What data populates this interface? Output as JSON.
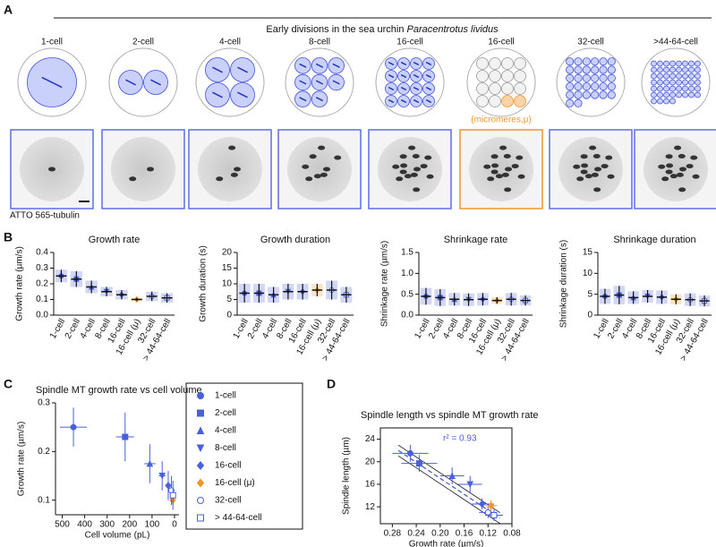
{
  "panel_labels": [
    "A",
    "B",
    "C",
    "D"
  ],
  "panel_a": {
    "header": "Early divisions in the sea urchin",
    "header_species": "Paracentrotus lividus",
    "stages": [
      "1-cell",
      "2-cell",
      "4-cell",
      "8-cell",
      "16-cell",
      "16-cell",
      "32-cell",
      ">44-64-cell"
    ],
    "annotation": "(micromeres,μ)",
    "stain_label": "ATTO 565-tubulin"
  },
  "chart_data": [
    {
      "type": "dot",
      "title": "Growth rate",
      "y_label": "Growth rate (µm/s)",
      "categories": [
        "1-cell",
        "2-cell",
        "4-cell",
        "8-cell",
        "16-cell",
        "16-cell (μ)",
        "32-cell",
        "> 44-64-cell"
      ],
      "values": [
        0.25,
        0.23,
        0.18,
        0.15,
        0.13,
        0.1,
        0.12,
        0.11
      ],
      "errors": [
        0.04,
        0.05,
        0.04,
        0.03,
        0.03,
        0.01,
        0.03,
        0.03
      ],
      "colors": [
        "#4a5fe0",
        "#4a5fe0",
        "#4a5fe0",
        "#4a5fe0",
        "#4a5fe0",
        "#f0962d",
        "#4a5fe0",
        "#4a5fe0"
      ],
      "markers": [
        "circle",
        "square",
        "triangle",
        "triangle-down",
        "diamond",
        "diamond",
        "circle-open",
        "square-open"
      ],
      "ylim": [
        0,
        0.4
      ],
      "yticks": [
        {
          "value": 0,
          "label": "0.0"
        },
        0.1,
        0.2,
        0.3,
        0.4
      ]
    },
    {
      "type": "dot",
      "title": "Growth duration",
      "y_label": "Growth duration (s)",
      "categories": [
        "1-cell",
        "2-cell",
        "4-cell",
        "8-cell",
        "16-cell",
        "16-cell (μ)",
        "32-cell",
        "> 44-64-cell"
      ],
      "values": [
        7,
        7,
        6.5,
        7.5,
        7.5,
        8,
        8,
        6.5
      ],
      "errors": [
        3,
        3,
        2.5,
        2.5,
        2.5,
        2,
        3,
        2.5
      ],
      "colors": [
        "#4a5fe0",
        "#4a5fe0",
        "#4a5fe0",
        "#4a5fe0",
        "#4a5fe0",
        "#f0962d",
        "#4a5fe0",
        "#4a5fe0"
      ],
      "markers": [
        "circle",
        "square",
        "triangle",
        "triangle-down",
        "diamond",
        "diamond",
        "circle-open",
        "square-open"
      ],
      "ylim": [
        0,
        20
      ],
      "yticks": [
        0,
        5,
        10,
        15,
        20
      ]
    },
    {
      "type": "dot",
      "title": "Shrinkage rate",
      "y_label": "Shrinkage rate (µm/s)",
      "categories": [
        "1-cell",
        "2-cell",
        "4-cell",
        "8-cell",
        "16-cell",
        "16-cell (μ)",
        "32-cell",
        "> 44-64-cell"
      ],
      "values": [
        0.45,
        0.42,
        0.38,
        0.37,
        0.38,
        0.35,
        0.38,
        0.35
      ],
      "errors": [
        0.2,
        0.2,
        0.15,
        0.15,
        0.15,
        0.08,
        0.15,
        0.12
      ],
      "colors": [
        "#4a5fe0",
        "#4a5fe0",
        "#4a5fe0",
        "#4a5fe0",
        "#4a5fe0",
        "#f0962d",
        "#4a5fe0",
        "#4a5fe0"
      ],
      "markers": [
        "circle",
        "square",
        "triangle",
        "triangle-down",
        "diamond",
        "diamond",
        "circle-open",
        "square-open"
      ],
      "ylim": [
        0,
        1.5
      ],
      "yticks": [
        {
          "value": 0,
          "label": "0.0"
        },
        0.5,
        {
          "value": 1,
          "label": "1.0"
        },
        1.5
      ]
    },
    {
      "type": "dot",
      "title": "Shrinkage duration",
      "y_label": "Shrinkage duration (s)",
      "categories": [
        "1-cell",
        "2-cell",
        "4-cell",
        "8-cell",
        "16-cell",
        "16-cell (μ)",
        "32-cell",
        "> 44-64-cell"
      ],
      "values": [
        4.5,
        4.8,
        4.2,
        4.5,
        4.3,
        3.8,
        3.7,
        3.4
      ],
      "errors": [
        1.8,
        2.2,
        1.5,
        1.5,
        1.6,
        1.2,
        1.5,
        1.3
      ],
      "colors": [
        "#4a5fe0",
        "#4a5fe0",
        "#4a5fe0",
        "#4a5fe0",
        "#4a5fe0",
        "#f0962d",
        "#4a5fe0",
        "#4a5fe0"
      ],
      "markers": [
        "circle",
        "square",
        "triangle",
        "triangle-down",
        "diamond",
        "diamond",
        "circle-open",
        "square-open"
      ],
      "ylim": [
        0,
        15
      ],
      "yticks": [
        0,
        5,
        10,
        15
      ]
    },
    {
      "type": "scatter",
      "title": "Spindle MT growth rate vs cell volume",
      "x_label": "Cell volume (pL)",
      "y_label": "Growth rate (µm/s)",
      "categories": [
        "1-cell",
        "2-cell",
        "4-cell",
        "8-cell",
        "16-cell",
        "16-cell (μ)",
        "32-cell",
        "> 44-64-cell"
      ],
      "x": [
        450,
        220,
        110,
        55,
        28,
        8,
        14,
        7
      ],
      "values": [
        0.25,
        0.23,
        0.175,
        0.15,
        0.13,
        0.1,
        0.12,
        0.11
      ],
      "x_err": [
        60,
        40,
        25,
        15,
        10,
        3,
        5,
        3
      ],
      "y_err": [
        0.04,
        0.05,
        0.04,
        0.03,
        0.03,
        0.01,
        0.03,
        0.03
      ],
      "colors": [
        "#4a5fe0",
        "#4a5fe0",
        "#4a5fe0",
        "#4a5fe0",
        "#4a5fe0",
        "#f0962d",
        "#4a5fe0",
        "#4a5fe0"
      ],
      "markers": [
        "circle",
        "square",
        "triangle",
        "triangle-down",
        "diamond",
        "diamond",
        "circle-open",
        "square-open"
      ],
      "xlim": [
        530,
        -20
      ],
      "xticks": [
        500,
        400,
        300,
        200,
        100,
        0
      ],
      "ylim": [
        0.07,
        0.3
      ],
      "yticks": [
        0.1,
        0.2,
        0.3
      ]
    },
    {
      "type": "scatter",
      "title": "Spindle length vs spindle MT growth rate",
      "x_label": "Growth rate (µm/s)",
      "y_label": "Spindle length (µm)",
      "annotation": "r² = 0.93",
      "x": [
        0.25,
        0.235,
        0.18,
        0.15,
        0.13,
        0.115,
        0.12,
        0.11
      ],
      "values": [
        21.5,
        19.7,
        17.5,
        16,
        12.5,
        12.2,
        11,
        10.5
      ],
      "x_err": [
        0.03,
        0.03,
        0.02,
        0.02,
        0.02,
        0.01,
        0.015,
        0.015
      ],
      "y_err": [
        1.5,
        1.5,
        1.5,
        1.5,
        1,
        1,
        1,
        1
      ],
      "colors": [
        "#4a5fe0",
        "#4a5fe0",
        "#4a5fe0",
        "#4a5fe0",
        "#4a5fe0",
        "#f0962d",
        "#4a5fe0",
        "#4a5fe0"
      ],
      "markers": [
        "circle",
        "square",
        "triangle",
        "triangle-down",
        "diamond",
        "diamond",
        "circle-open",
        "square-open"
      ],
      "fit": {
        "x": [
          0.27,
          0.1
        ],
        "y": [
          22,
          10
        ]
      },
      "xlim": [
        0.3,
        0.08
      ],
      "xticks": [
        0.28,
        0.24,
        {
          "value": 0.2,
          "label": "0.20"
        },
        0.16,
        0.12,
        0.08
      ],
      "ylim": [
        9,
        26
      ],
      "yticks": [
        12,
        16,
        20,
        24
      ]
    }
  ]
}
